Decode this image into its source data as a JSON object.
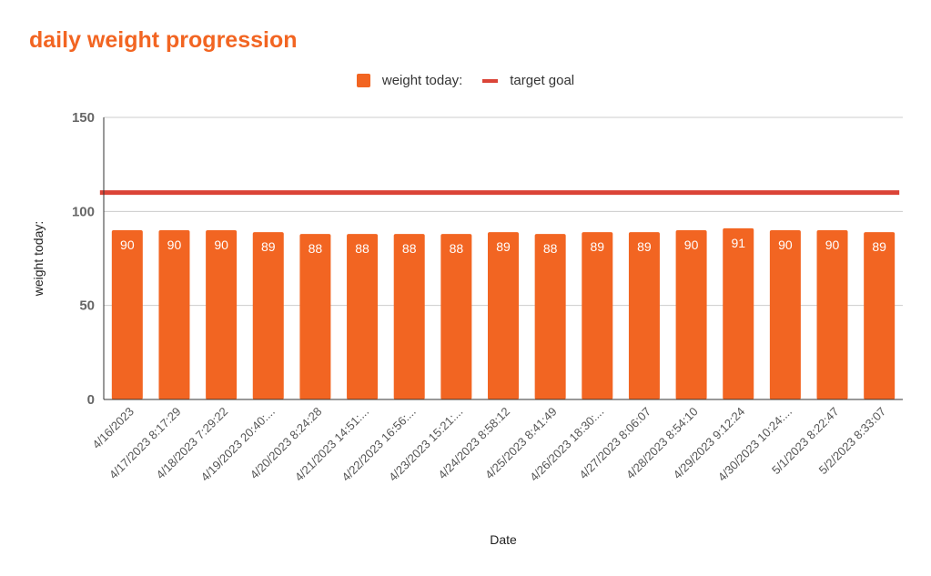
{
  "chart_data": {
    "type": "bar",
    "title": "daily weight progression",
    "xlabel": "Date",
    "ylabel": "weight today:",
    "ylim": [
      0,
      150
    ],
    "yticks": [
      0,
      50,
      100,
      150
    ],
    "grid": true,
    "legend_position": "top",
    "categories": [
      "4/16/2023",
      "4/17/2023 8:17:29",
      "4/18/2023 7:29:22",
      "4/19/2023 20:40:...",
      "4/20/2023 8:24:28",
      "4/21/2023 14:51:...",
      "4/22/2023 16:56:...",
      "4/23/2023 15:21:...",
      "4/24/2023 8:58:12",
      "4/25/2023 8:41:49",
      "4/26/2023 18:30:...",
      "4/27/2023 8:06:07",
      "4/28/2023 8:54:10",
      "4/29/2023 9:12:24",
      "4/30/2023 10:24:...",
      "5/1/2023 8:22:47",
      "5/2/2023 8:33:07"
    ],
    "series": [
      {
        "name": "weight today:",
        "type": "bar",
        "color": "#f26522",
        "values": [
          90,
          90,
          90,
          89,
          88,
          88,
          88,
          88,
          89,
          88,
          89,
          89,
          90,
          91,
          90,
          90,
          89
        ],
        "data_labels": [
          "90",
          "90",
          "90",
          "89",
          "88",
          "88",
          "88",
          "88",
          "89",
          "88",
          "89",
          "89",
          "90",
          "91",
          "90",
          "90",
          "89"
        ]
      },
      {
        "name": "target goal",
        "type": "line",
        "color": "#db4437",
        "values": [
          110,
          110,
          110,
          110,
          110,
          110,
          110,
          110,
          110,
          110,
          110,
          110,
          110,
          110,
          110,
          110,
          110
        ]
      }
    ]
  }
}
